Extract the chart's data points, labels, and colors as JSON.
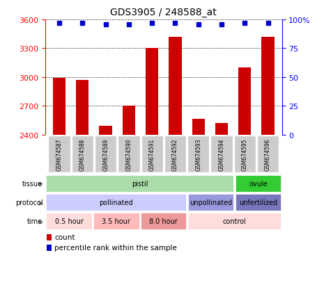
{
  "title": "GDS3905 / 248588_at",
  "samples": [
    "GSM674587",
    "GSM674588",
    "GSM674589",
    "GSM674590",
    "GSM674591",
    "GSM674592",
    "GSM674593",
    "GSM674594",
    "GSM674595",
    "GSM674596"
  ],
  "counts": [
    2990,
    2970,
    2490,
    2700,
    3300,
    3420,
    2560,
    2520,
    3100,
    3420
  ],
  "percentile_ranks": [
    97,
    97,
    96,
    96,
    97,
    97,
    96,
    96,
    97,
    97
  ],
  "ylim_left": [
    2400,
    3600
  ],
  "ylim_right": [
    0,
    100
  ],
  "yticks_left": [
    2400,
    2700,
    3000,
    3300,
    3600
  ],
  "yticks_right": [
    0,
    25,
    50,
    75,
    100
  ],
  "bar_color": "#cc0000",
  "dot_color": "#0000cc",
  "annotation_rows": [
    {
      "label": "tissue",
      "segments": [
        {
          "text": "pistil",
          "start": 0,
          "end": 8,
          "color": "#aaddaa"
        },
        {
          "text": "ovule",
          "start": 8,
          "end": 10,
          "color": "#33cc33"
        }
      ]
    },
    {
      "label": "protocol",
      "segments": [
        {
          "text": "pollinated",
          "start": 0,
          "end": 6,
          "color": "#ccccff"
        },
        {
          "text": "unpollinated",
          "start": 6,
          "end": 8,
          "color": "#9999dd"
        },
        {
          "text": "unfertilized",
          "start": 8,
          "end": 10,
          "color": "#7777bb"
        }
      ]
    },
    {
      "label": "time",
      "segments": [
        {
          "text": "0.5 hour",
          "start": 0,
          "end": 2,
          "color": "#ffdddd"
        },
        {
          "text": "3.5 hour",
          "start": 2,
          "end": 4,
          "color": "#ffbbbb"
        },
        {
          "text": "8.0 hour",
          "start": 4,
          "end": 6,
          "color": "#ee9999"
        },
        {
          "text": "control",
          "start": 6,
          "end": 10,
          "color": "#ffdddd"
        }
      ]
    }
  ],
  "legend_items": [
    {
      "label": "count",
      "color": "#cc0000"
    },
    {
      "label": "percentile rank within the sample",
      "color": "#0000cc"
    }
  ],
  "sample_box_color": "#cccccc",
  "sample_box_edgecolor": "#ffffff"
}
